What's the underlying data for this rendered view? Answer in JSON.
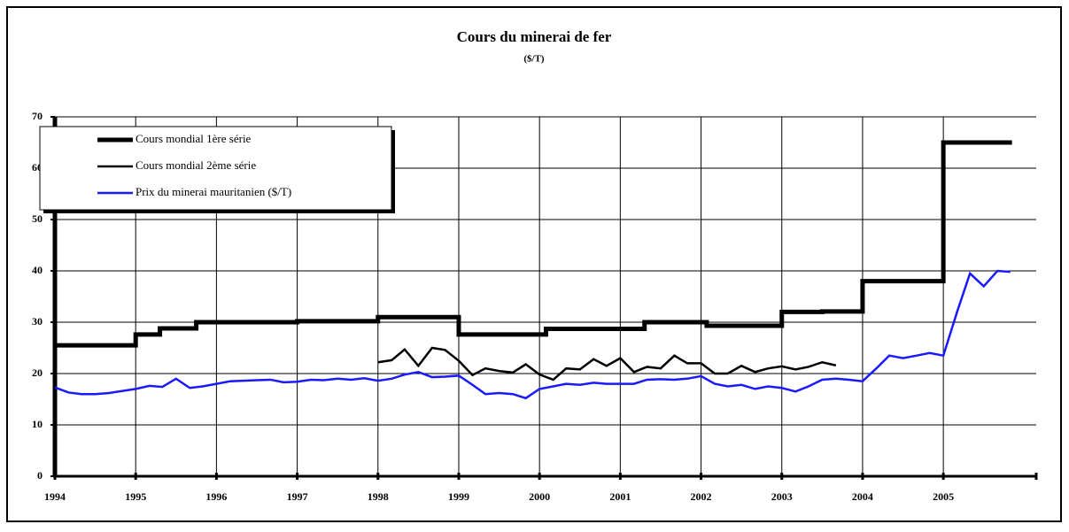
{
  "chart_data": {
    "type": "line",
    "title": "Cours du minerai de fer",
    "subtitle": "($/T)",
    "xlim": [
      1994,
      2006.15
    ],
    "ylim": [
      0,
      70
    ],
    "xticks": [
      1994,
      1995,
      1996,
      1997,
      1998,
      1999,
      2000,
      2001,
      2002,
      2003,
      2004,
      2005
    ],
    "yticks": [
      0,
      10,
      20,
      30,
      40,
      50,
      60,
      70
    ],
    "grid": true,
    "legend": "upper left",
    "x": [
      1994,
      1994.17,
      1994.33,
      1994.5,
      1994.67,
      1994.83,
      1995,
      1995.17,
      1995.33,
      1995.5,
      1995.67,
      1995.83,
      1996,
      1996.17,
      1996.33,
      1996.5,
      1996.67,
      1996.83,
      1997,
      1997.17,
      1997.33,
      1997.5,
      1997.67,
      1997.83,
      1998,
      1998.17,
      1998.33,
      1998.5,
      1998.67,
      1998.83,
      1999,
      1999.17,
      1999.33,
      1999.5,
      1999.67,
      1999.83,
      2000,
      2000.17,
      2000.33,
      2000.5,
      2000.67,
      2000.83,
      2001,
      2001.17,
      2001.33,
      2001.5,
      2001.67,
      2001.83,
      2002,
      2002.17,
      2002.33,
      2002.5,
      2002.67,
      2002.83,
      2003,
      2003.17,
      2003.33,
      2003.5,
      2003.67,
      2003.83,
      2004,
      2004.17,
      2004.33,
      2004.5,
      2004.67,
      2004.83,
      2005,
      2005.17,
      2005.33,
      2005.5,
      2005.67,
      2005.83
    ],
    "series": [
      {
        "name": "Cours mondial 1ère série",
        "color": "#000000",
        "width": 5,
        "x": [
          1994,
          1995,
          1995,
          1995.3,
          1995.3,
          1995.75,
          1995.75,
          1997,
          1997,
          1998,
          1998,
          1999,
          1999,
          2000.08,
          2000.08,
          2001.3,
          2001.3,
          2002.07,
          2002.07,
          2003,
          2003,
          2003.5,
          2003.5,
          2004,
          2004,
          2005,
          2005,
          2005.85
        ],
        "values": [
          25.5,
          25.5,
          27.6,
          27.6,
          28.8,
          28.8,
          30,
          30,
          30.2,
          30.2,
          31,
          31,
          27.6,
          27.6,
          28.7,
          28.7,
          30,
          30,
          29.3,
          29.3,
          32,
          32,
          32.1,
          32.1,
          38,
          38,
          65,
          65
        ]
      },
      {
        "name": "Cours mondial 2ème série",
        "color": "#000000",
        "width": 2.5,
        "values": [
          null,
          null,
          null,
          null,
          null,
          null,
          null,
          null,
          null,
          null,
          null,
          null,
          null,
          null,
          null,
          null,
          null,
          null,
          null,
          null,
          null,
          null,
          null,
          null,
          22.2,
          22.6,
          24.7,
          21.5,
          25,
          24.6,
          22.5,
          19.7,
          21,
          20.5,
          20.2,
          21.8,
          19.8,
          18.8,
          21,
          20.8,
          22.8,
          21.5,
          23,
          20.3,
          21.3,
          21,
          23.5,
          22,
          22,
          20,
          20,
          21.5,
          20.3,
          21,
          21.4,
          20.8,
          21.3,
          22.2,
          21.6,
          null,
          null,
          null,
          null,
          null,
          null,
          null,
          null,
          null,
          null,
          null,
          null,
          null
        ]
      },
      {
        "name": "Prix du minerai mauritanien ($/T)",
        "color": "#1a1aff",
        "width": 2.5,
        "values": [
          17.3,
          16.3,
          16,
          16,
          16.2,
          16.6,
          17,
          17.6,
          17.4,
          19,
          17.2,
          17.5,
          18,
          18.5,
          18.6,
          18.7,
          18.8,
          18.3,
          18.4,
          18.8,
          18.7,
          19,
          18.8,
          19.1,
          18.6,
          19,
          19.8,
          20.3,
          19.3,
          19.4,
          19.6,
          17.8,
          16,
          16.2,
          16,
          15.2,
          17,
          17.5,
          18,
          17.8,
          18.2,
          18,
          18,
          18,
          18.8,
          18.9,
          18.8,
          19,
          19.5,
          18,
          17.5,
          17.8,
          17,
          17.5,
          17.2,
          16.5,
          17.5,
          18.8,
          19,
          18.8,
          18.5,
          21,
          23.5,
          23,
          23.5,
          24,
          23.5,
          32,
          39.5,
          37,
          40,
          39.8
        ]
      }
    ]
  }
}
